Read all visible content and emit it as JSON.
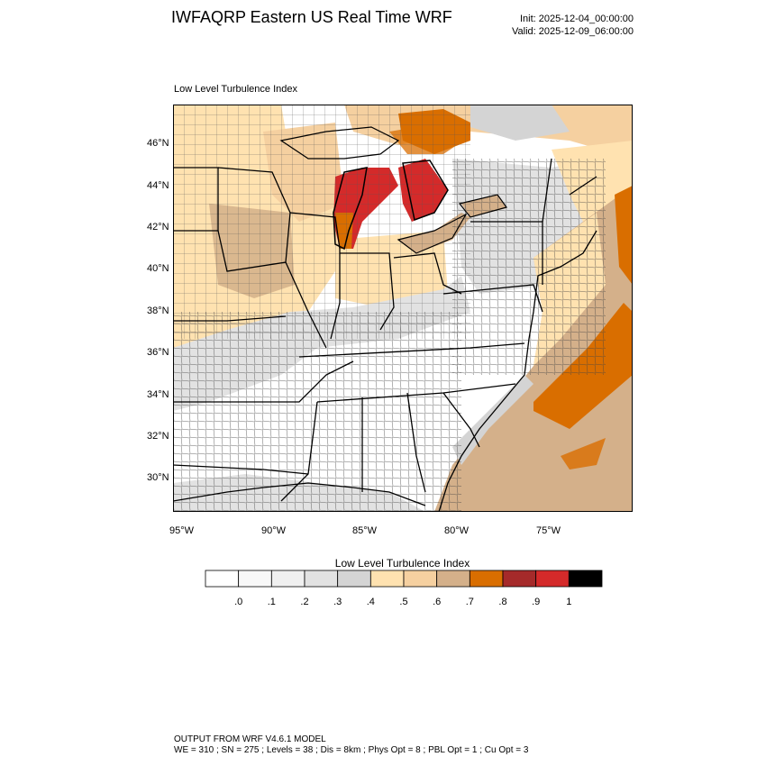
{
  "header": {
    "title": "IWFAQRP Eastern US Real Time WRF",
    "init": "Init: 2025-12-04_00:00:00",
    "valid": "Valid: 2025-12-09_06:00:00"
  },
  "map": {
    "subtitle": "Low Level Turbulence Index",
    "lat_labels": [
      "46°N",
      "44°N",
      "42°N",
      "40°N",
      "38°N",
      "36°N",
      "34°N",
      "32°N",
      "30°N"
    ],
    "lon_labels": [
      "95°W",
      "90°W",
      "85°W",
      "80°W",
      "75°W"
    ]
  },
  "colorbar": {
    "title": "Low Level Turbulence Index",
    "ticks": [
      ".0",
      ".1",
      ".2",
      ".3",
      ".4",
      ".5",
      ".6",
      ".7",
      ".8",
      ".9",
      "1"
    ],
    "colors": [
      "#ffffff",
      "#f8f8f8",
      "#f0f0f0",
      "#e2e2e2",
      "#d4d4d4",
      "#ffe2b0",
      "#f5d0a0",
      "#d4b08a",
      "#d96e00",
      "#a52a2a",
      "#d42a2a",
      "#000000"
    ]
  },
  "footer": {
    "line1": "OUTPUT FROM WRF V4.6.1 MODEL",
    "line2": "WE = 310 ; SN = 275 ; Levels = 38 ; Dis = 8km ; Phys Opt = 8 ; PBL Opt = 1 ; Cu Opt = 3"
  }
}
